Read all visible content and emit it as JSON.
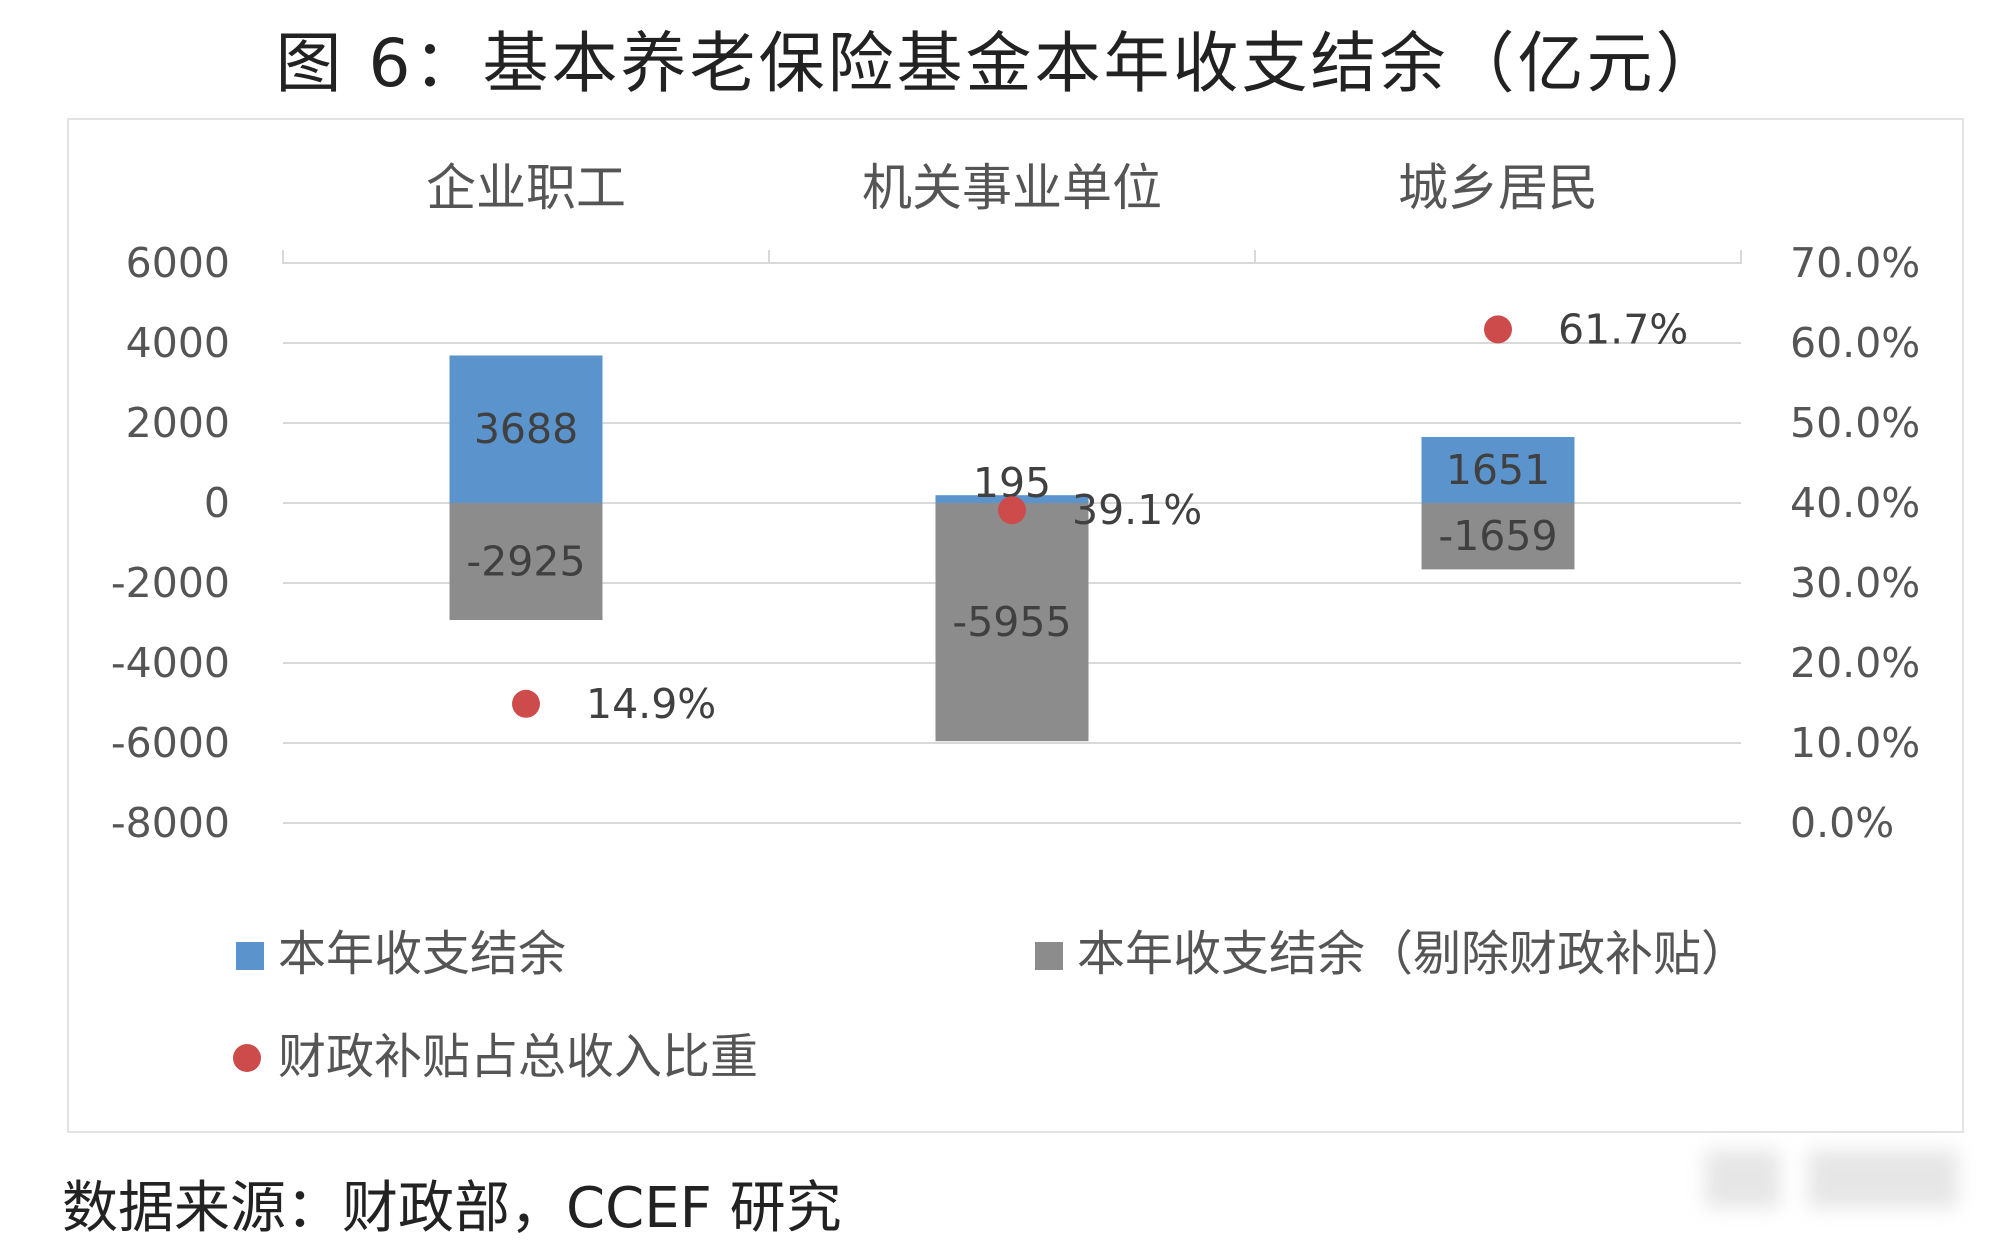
{
  "title": "图 6：基本养老保险基金本年收支结余（亿元）",
  "source": "数据来源：财政部，CCEF 研究",
  "colors": {
    "balance": "#5b93cc",
    "balance_ex_subsidy": "#8c8c8c",
    "subsidy_share": "#cd4b4b",
    "grid": "#d9d9d9",
    "text": "#555555"
  },
  "chart_data": {
    "type": "bar",
    "categories": [
      "企业职工",
      "机关事业单位",
      "城乡居民"
    ],
    "series": [
      {
        "name": "本年收支结余",
        "type": "bar",
        "axis": "left",
        "values": [
          3688,
          195,
          1651
        ]
      },
      {
        "name": "本年收支结余（剔除财政补贴）",
        "type": "bar",
        "axis": "left",
        "values": [
          -2925,
          -5955,
          -1659
        ]
      },
      {
        "name": "财政补贴占总收入比重",
        "type": "scatter",
        "axis": "right",
        "values": [
          14.9,
          39.1,
          61.7
        ],
        "labels": [
          "14.9%",
          "39.1%",
          "61.7%"
        ]
      }
    ],
    "y_left": {
      "range": [
        -8000,
        6000
      ],
      "ticks": [
        "6000",
        "4000",
        "2000",
        "0",
        "-2000",
        "-4000",
        "-6000",
        "-8000"
      ]
    },
    "y_right": {
      "range": [
        0,
        70
      ],
      "ticks": [
        "70.0%",
        "60.0%",
        "50.0%",
        "40.0%",
        "30.0%",
        "20.0%",
        "10.0%",
        "0.0%"
      ]
    },
    "legend": [
      "本年收支结余",
      "本年收支结余（剔除财政补贴）",
      "财政补贴占总收入比重"
    ],
    "legend_position": "bottom",
    "grid": true
  }
}
